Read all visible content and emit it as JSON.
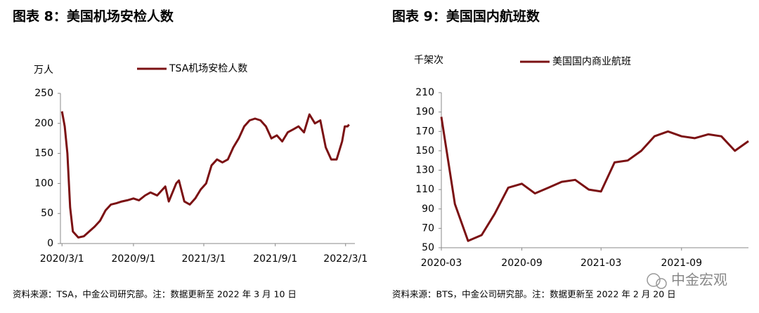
{
  "chart_data": [
    {
      "type": "line",
      "title": "图表 8：美国机场安检人数",
      "y_unit": "万人",
      "source": "资料来源：TSA，中金公司研究部。注：数据更新至 2022 年 3 月 10 日",
      "x": [
        "2020/3/1",
        "2020/3/8",
        "2020/3/15",
        "2020/3/22",
        "2020/3/29",
        "2020/4/12",
        "2020/4/26",
        "2020/5/10",
        "2020/5/24",
        "2020/6/7",
        "2020/6/21",
        "2020/7/5",
        "2020/7/19",
        "2020/8/2",
        "2020/8/16",
        "2020/9/1",
        "2020/9/15",
        "2020/10/1",
        "2020/10/15",
        "2020/11/1",
        "2020/11/22",
        "2020/12/1",
        "2020/12/20",
        "2020/12/27",
        "2021/1/10",
        "2021/1/24",
        "2021/2/7",
        "2021/2/21",
        "2021/3/7",
        "2021/3/21",
        "2021/4/4",
        "2021/4/18",
        "2021/5/2",
        "2021/5/16",
        "2021/5/30",
        "2021/6/13",
        "2021/6/27",
        "2021/7/11",
        "2021/7/25",
        "2021/8/8",
        "2021/8/22",
        "2021/9/5",
        "2021/9/19",
        "2021/10/3",
        "2021/10/17",
        "2021/10/31",
        "2021/11/14",
        "2021/11/28",
        "2021/12/12",
        "2021/12/26",
        "2022/1/9",
        "2022/1/23",
        "2022/2/6",
        "2022/2/20",
        "2022/2/27",
        "2022/3/6",
        "2022/3/10"
      ],
      "series": [
        {
          "name": "TSA机场安检人数",
          "color": "#7b1113",
          "values": [
            220,
            195,
            150,
            60,
            20,
            10,
            12,
            20,
            28,
            38,
            55,
            65,
            67,
            70,
            72,
            75,
            72,
            80,
            85,
            80,
            95,
            70,
            100,
            105,
            70,
            65,
            75,
            90,
            100,
            130,
            140,
            135,
            140,
            160,
            175,
            195,
            205,
            208,
            205,
            195,
            175,
            180,
            170,
            185,
            190,
            195,
            185,
            215,
            200,
            205,
            160,
            140,
            140,
            170,
            195,
            195,
            198
          ]
        }
      ],
      "xlim": [
        "2020/2/26",
        "2022/3/25"
      ],
      "xticks": [
        "2020/3/1",
        "2020/9/1",
        "2021/3/1",
        "2021/9/1",
        "2022/3/1"
      ],
      "ylim": [
        0,
        250
      ],
      "yticks": [
        0,
        50,
        100,
        150,
        200,
        250
      ],
      "grid": false
    },
    {
      "type": "line",
      "title": "图表 9：美国国内航班数",
      "y_unit": "千架次",
      "source": "资料来源：BTS，中金公司研究部。注：数据更新至 2022 年 2 月 20 日",
      "x": [
        "2020-03",
        "2020-04",
        "2020-05",
        "2020-06",
        "2020-07",
        "2020-08",
        "2020-09",
        "2020-10",
        "2020-11",
        "2020-12",
        "2021-01",
        "2021-02",
        "2021-03",
        "2021-04",
        "2021-05",
        "2021-06",
        "2021-07",
        "2021-08",
        "2021-09",
        "2021-10",
        "2021-11",
        "2021-12",
        "2022-01",
        "2022-02"
      ],
      "series": [
        {
          "name": "美国国内商业航班",
          "color": "#7b1113",
          "values": [
            185,
            95,
            57,
            63,
            85,
            112,
            116,
            106,
            112,
            118,
            120,
            110,
            108,
            138,
            140,
            150,
            165,
            170,
            165,
            163,
            167,
            165,
            150,
            160
          ]
        }
      ],
      "xlim": [
        "2020-03",
        "2022-02"
      ],
      "xticks": [
        "2020-03",
        "2020-09",
        "2021-03",
        "2021-09"
      ],
      "ylim": [
        50,
        210
      ],
      "yticks": [
        50,
        70,
        90,
        110,
        130,
        150,
        170,
        190,
        210
      ],
      "grid": false
    }
  ],
  "watermark": "中金宏观"
}
